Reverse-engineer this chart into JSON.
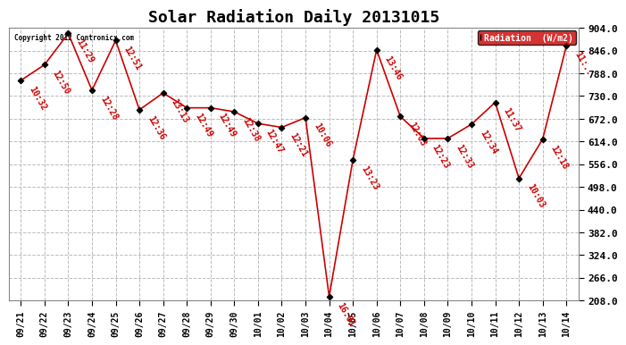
{
  "title": "Solar Radiation Daily 20131015",
  "copyright": "Copyright 2012 Contronicx.com",
  "legend_label": "Radiation  (W/m2)",
  "ylim": [
    208.0,
    904.0
  ],
  "yticks": [
    208.0,
    266.0,
    324.0,
    382.0,
    440.0,
    498.0,
    556.0,
    614.0,
    672.0,
    730.0,
    788.0,
    846.0,
    904.0
  ],
  "x_labels": [
    "09/21",
    "09/22",
    "09/23",
    "09/24",
    "09/25",
    "09/26",
    "09/27",
    "09/28",
    "09/29",
    "09/30",
    "10/01",
    "10/02",
    "10/03",
    "10/04",
    "10/05",
    "10/06",
    "10/07",
    "10/08",
    "10/09",
    "10/10",
    "10/11",
    "10/12",
    "10/13",
    "10/14"
  ],
  "y_values": [
    770,
    810,
    890,
    745,
    872,
    695,
    738,
    700,
    700,
    690,
    660,
    650,
    675,
    218,
    567,
    848,
    678,
    622,
    622,
    658,
    714,
    520,
    620,
    858
  ],
  "time_labels": [
    "10:32",
    "12:50",
    "11:29",
    "12:28",
    "12:51",
    "12:36",
    "13:13",
    "12:49",
    "12:49",
    "12:38",
    "12:47",
    "12:21",
    "10:06",
    "16:01",
    "13:23",
    "13:46",
    "12:03",
    "12:23",
    "12:33",
    "12:34",
    "11:37",
    "10:03",
    "12:18",
    "11:.."
  ],
  "line_color": "#cc0000",
  "marker_color": "#000000",
  "grid_color": "#bbbbbb",
  "bg_color": "#ffffff",
  "title_fontsize": 13,
  "legend_bg": "#cc0000",
  "legend_fg": "#ffffff"
}
